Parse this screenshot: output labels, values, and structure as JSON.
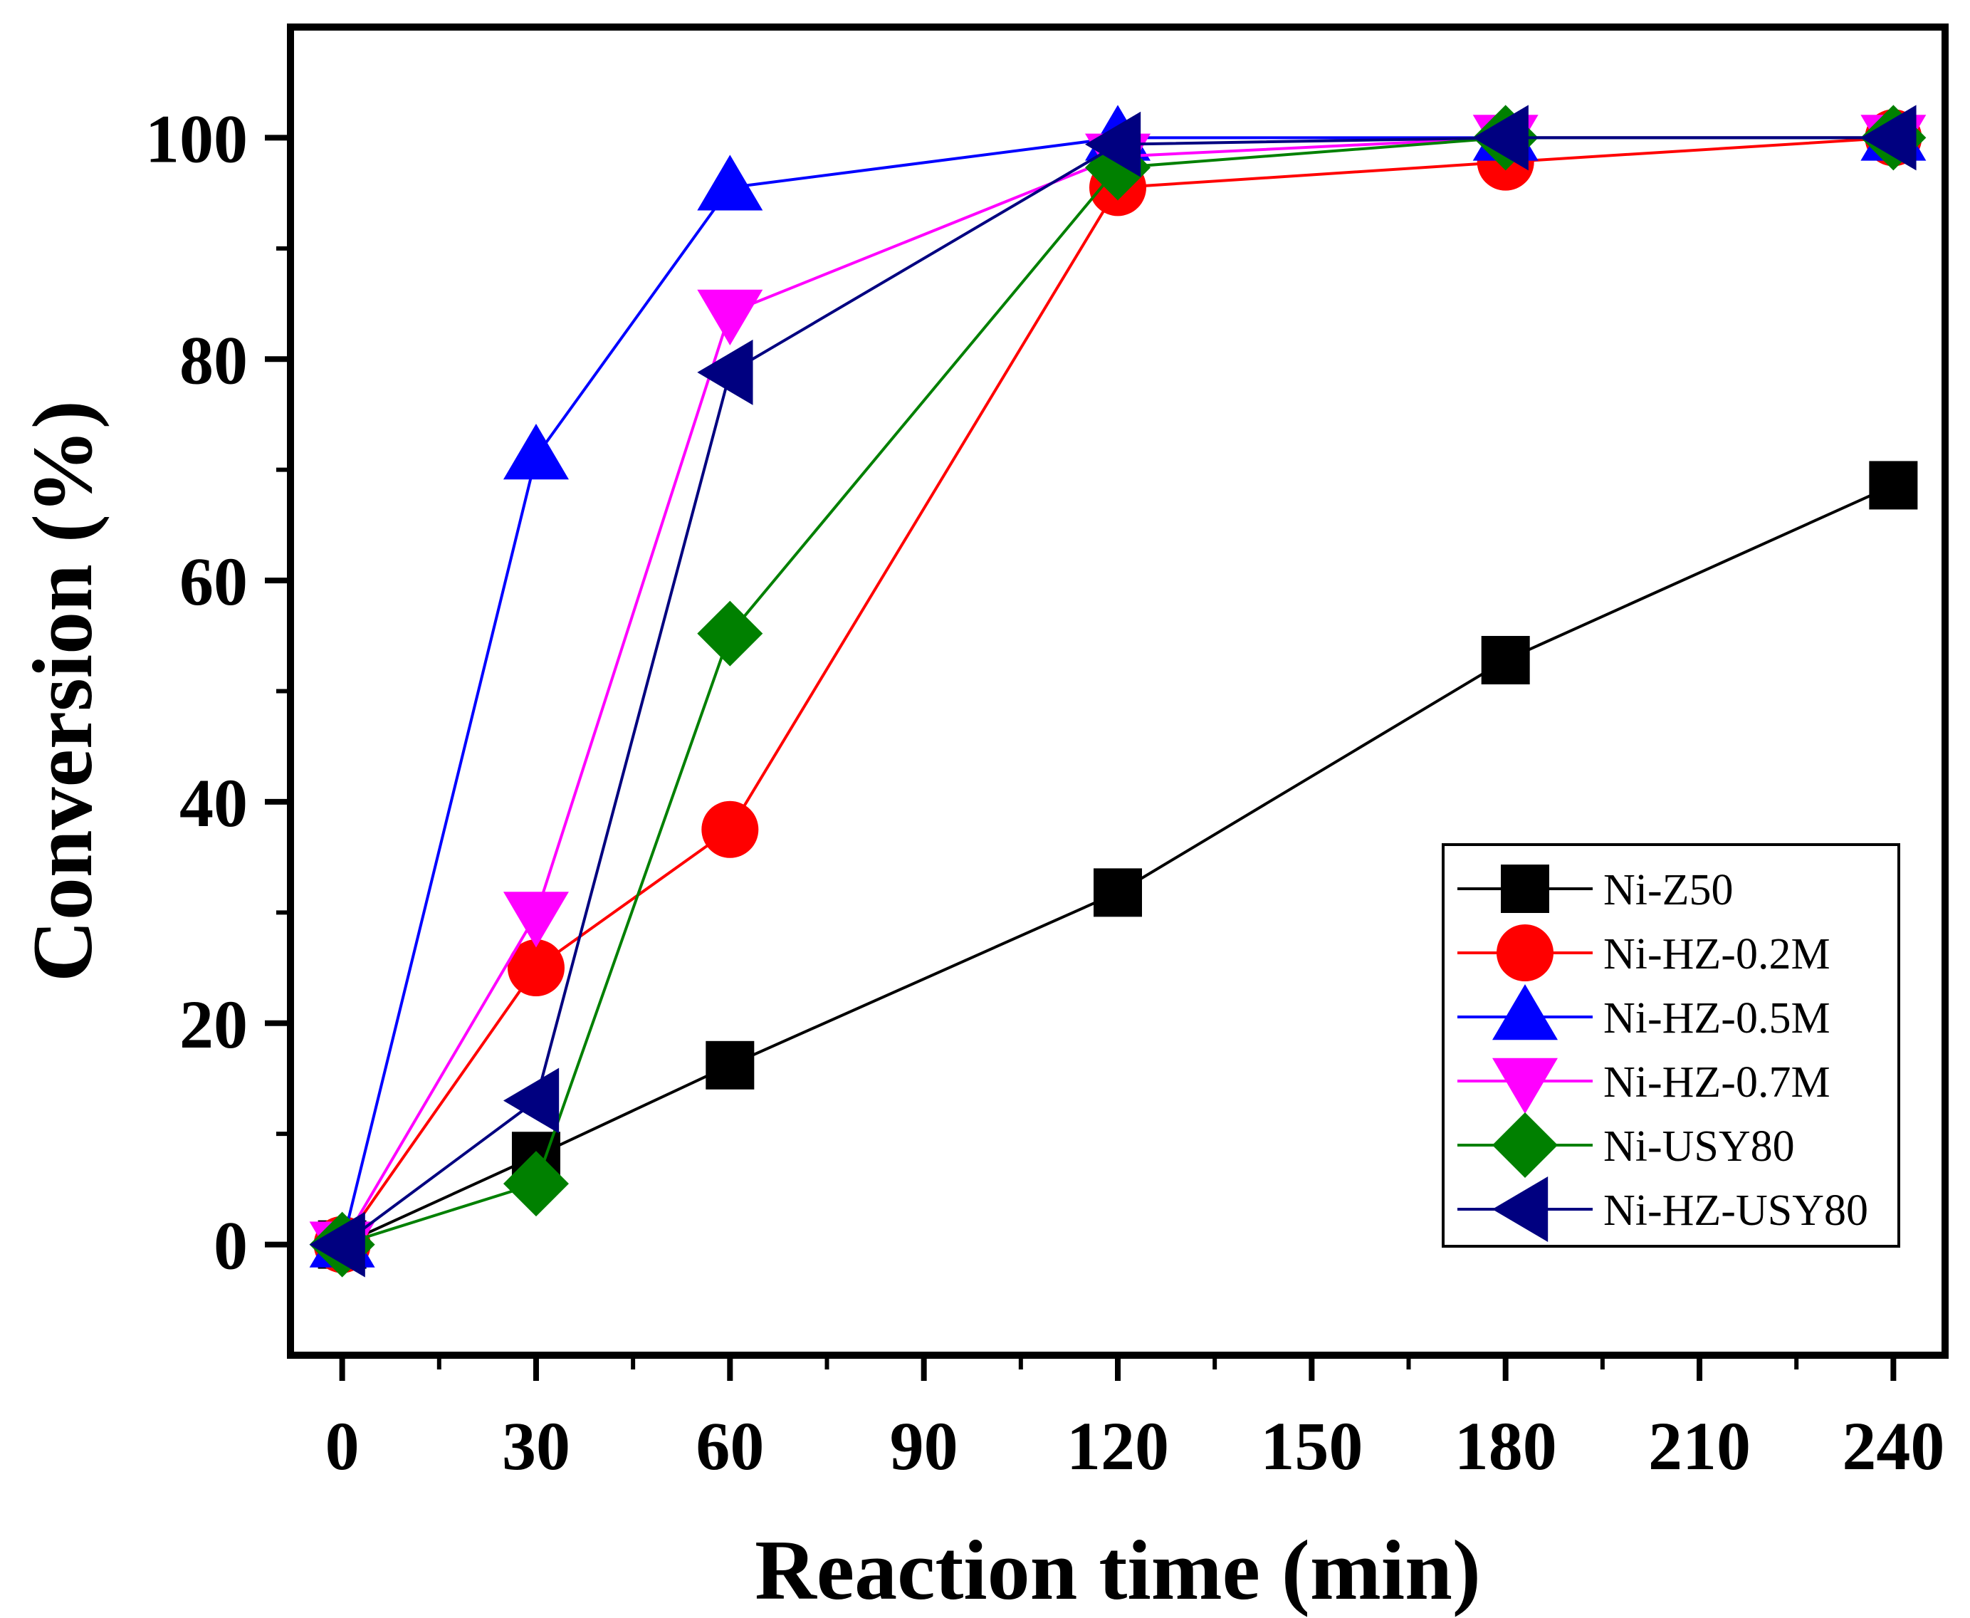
{
  "chart_data": {
    "type": "line",
    "title": "",
    "xlabel": "Reaction time (min)",
    "ylabel": "Conversion (%)",
    "xlim": [
      -8,
      248
    ],
    "ylim": [
      -10,
      110
    ],
    "grid": false,
    "legend_position": "bottom-right",
    "x_ticks": [
      0,
      30,
      60,
      90,
      120,
      150,
      180,
      210,
      240
    ],
    "x_tick_labels": [
      "0",
      "30",
      "60",
      "90",
      "120",
      "150",
      "180",
      "210",
      "240"
    ],
    "y_ticks": [
      0,
      20,
      40,
      60,
      80,
      100
    ],
    "y_tick_labels": [
      "0",
      "20",
      "40",
      "60",
      "80",
      "100"
    ],
    "series": [
      {
        "name": "Ni-Z50",
        "color": "#000000",
        "marker": "square",
        "x": [
          0,
          30,
          60,
          120,
          180,
          240
        ],
        "y": [
          0,
          8.0,
          16.2,
          31.8,
          52.8,
          68.6
        ]
      },
      {
        "name": "Ni-HZ-0.2M",
        "color": "#ff0000",
        "marker": "circle",
        "x": [
          0,
          30,
          60,
          120,
          180,
          240
        ],
        "y": [
          0,
          25.0,
          37.5,
          95.5,
          97.8,
          100
        ]
      },
      {
        "name": "Ni-HZ-0.5M",
        "color": "#0000ff",
        "marker": "triangle-up",
        "x": [
          0,
          30,
          60,
          120,
          180,
          240
        ],
        "y": [
          0,
          71.2,
          95.5,
          100,
          100,
          100
        ]
      },
      {
        "name": "Ni-HZ-0.7M",
        "color": "#ff00ff",
        "marker": "triangle-down",
        "x": [
          0,
          30,
          60,
          120,
          180,
          240
        ],
        "y": [
          0,
          29.8,
          84.2,
          98.3,
          100,
          100
        ]
      },
      {
        "name": "Ni-USY80",
        "color": "#008000",
        "marker": "diamond",
        "x": [
          0,
          30,
          60,
          120,
          180,
          240
        ],
        "y": [
          0,
          5.5,
          55.2,
          97.3,
          100,
          100
        ]
      },
      {
        "name": "Ni-HZ-USY80",
        "color": "#000080",
        "marker": "triangle-left",
        "x": [
          0,
          30,
          60,
          120,
          180,
          240
        ],
        "y": [
          0,
          13.0,
          78.8,
          99.4,
          100,
          100
        ]
      }
    ]
  }
}
